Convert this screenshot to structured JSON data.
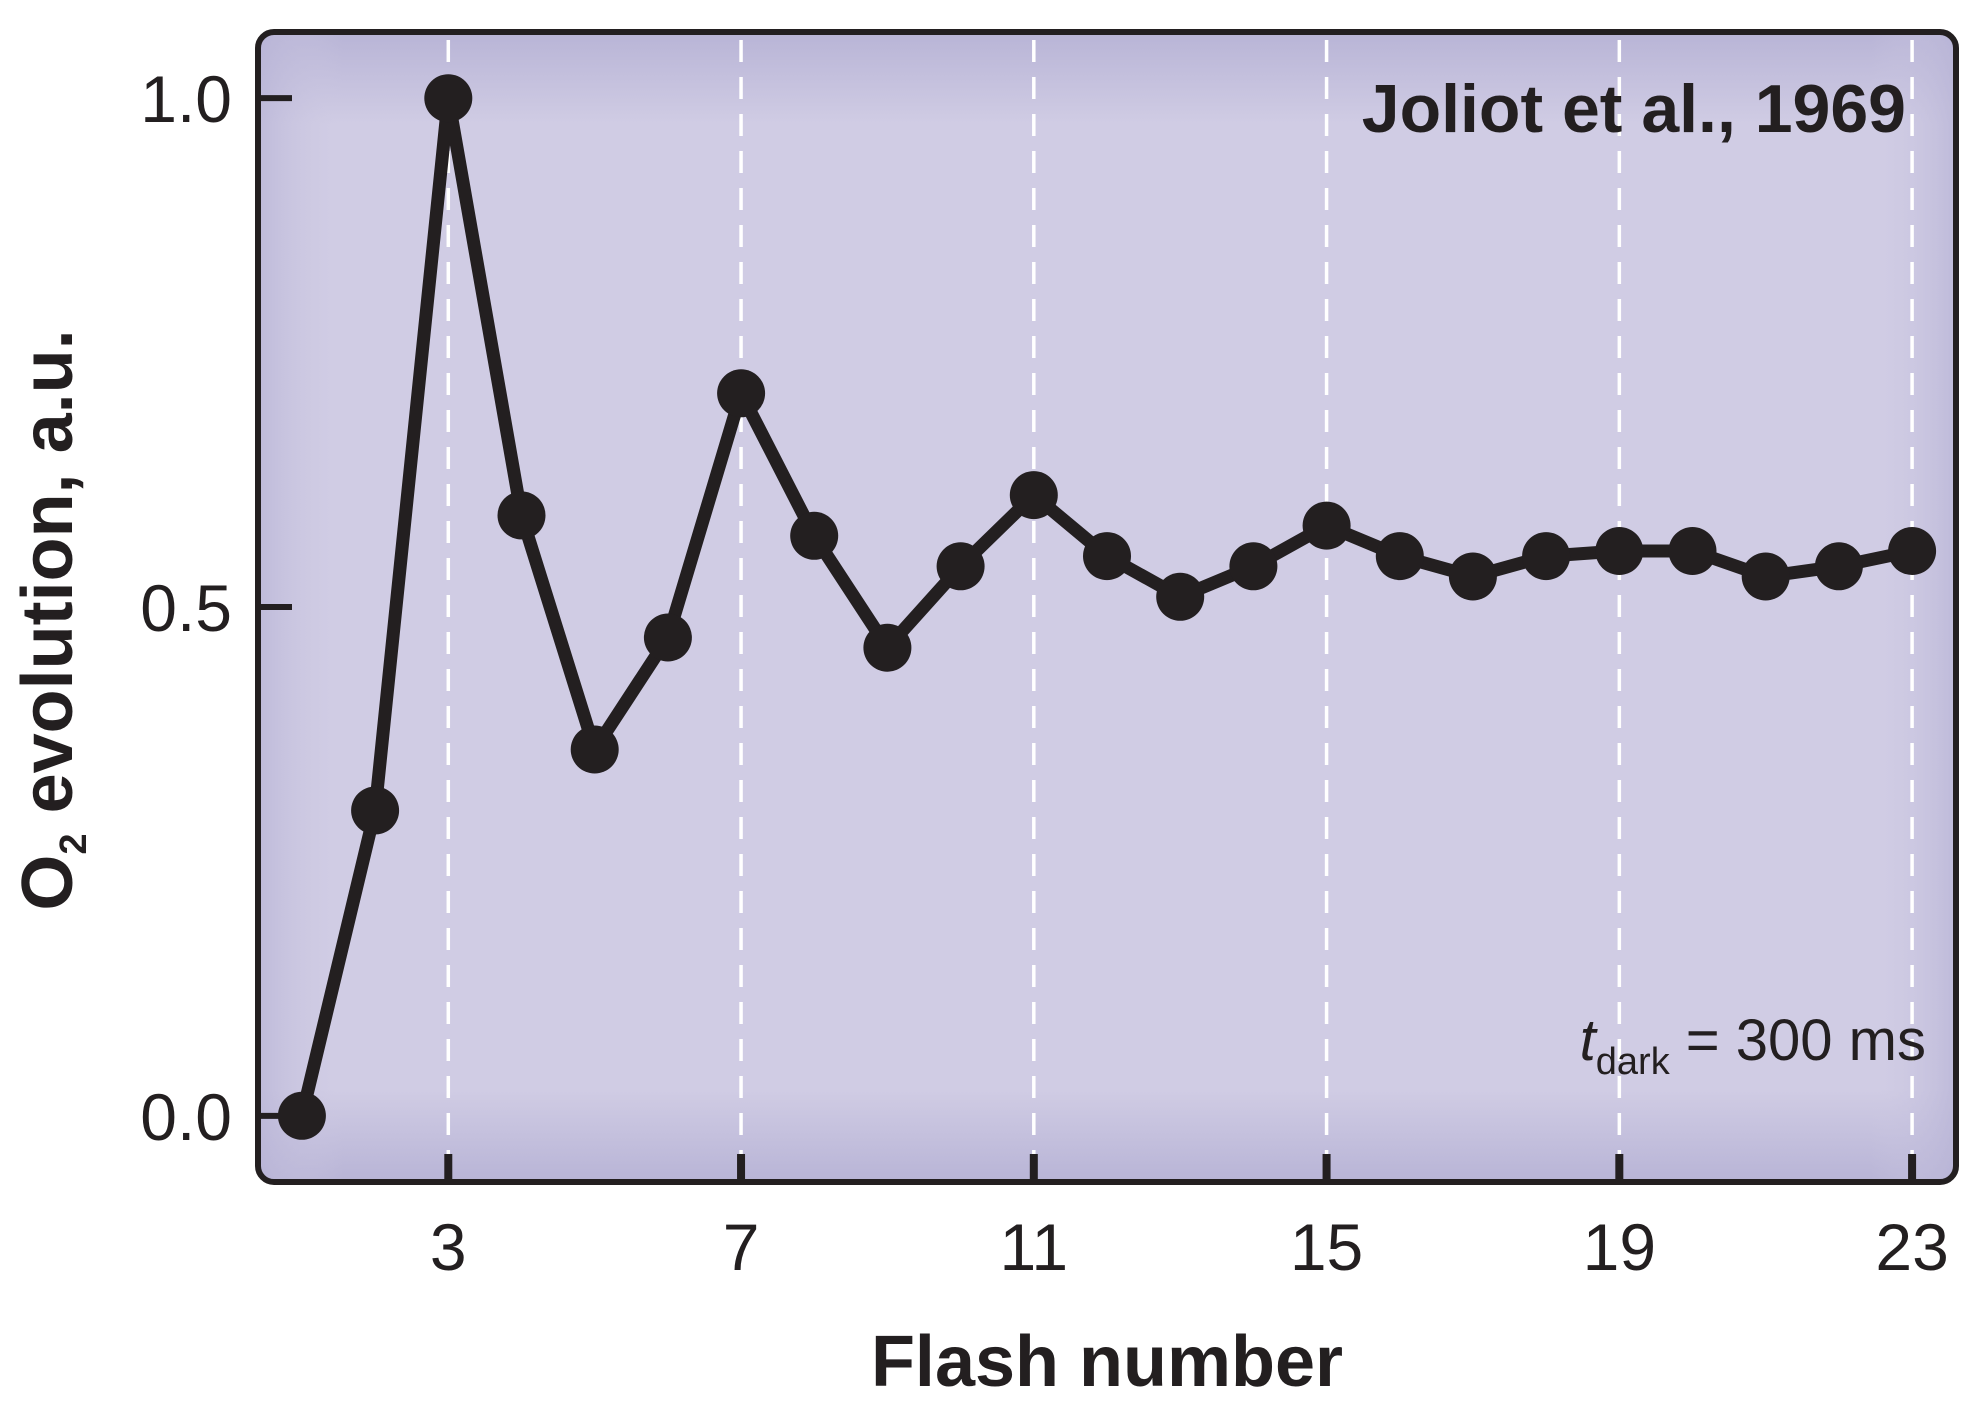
{
  "chart_data": {
    "type": "line",
    "title": "",
    "xlabel": "Flash number",
    "ylabel": {
      "prefix": "O",
      "subscript": "2",
      "suffix": " evolution, a.u."
    },
    "xlim": [
      0.4,
      23.6
    ],
    "ylim": [
      -0.065,
      1.065
    ],
    "x_ticks": [
      3,
      7,
      11,
      15,
      19,
      23
    ],
    "x_tick_labels": [
      "3",
      "7",
      "11",
      "15",
      "19",
      "23"
    ],
    "y_ticks": [
      0.0,
      0.5,
      1.0
    ],
    "y_tick_labels": [
      "0.0",
      "0.5",
      "1.0"
    ],
    "grid": "vertical dashed at x ticks",
    "annotations": {
      "source": "Joliot et al., 1969",
      "condition": {
        "symbol": "t",
        "subscript": "dark",
        "text": " = 300 ms"
      }
    },
    "colors": {
      "background": "#d0cce4",
      "background_edge": "#b8b4d6",
      "line": "#231f20",
      "grid": "#ffffff"
    },
    "series": [
      {
        "x": [
          1,
          2,
          3,
          4,
          5,
          6,
          7,
          8,
          9,
          10,
          11,
          12,
          13,
          14,
          15,
          16,
          17,
          18,
          19,
          20,
          21,
          22,
          23
        ],
        "values": [
          0.0,
          0.3,
          1.0,
          0.59,
          0.36,
          0.47,
          0.71,
          0.57,
          0.46,
          0.54,
          0.61,
          0.55,
          0.51,
          0.54,
          0.58,
          0.55,
          0.53,
          0.55,
          0.555,
          0.555,
          0.53,
          0.54,
          0.555
        ]
      }
    ]
  }
}
